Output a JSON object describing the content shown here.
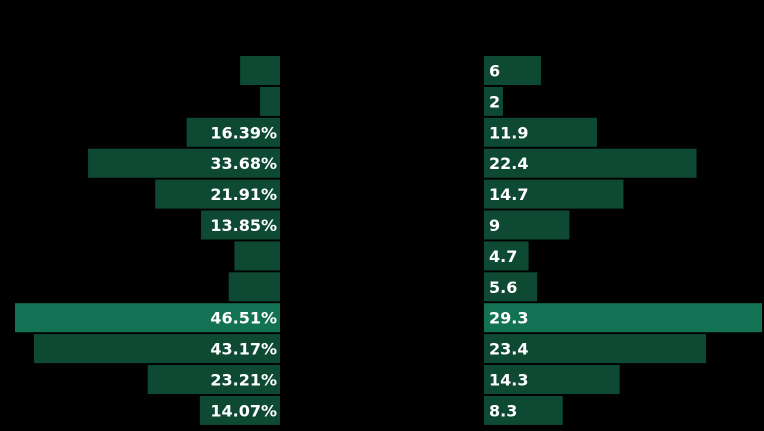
{
  "chart_data": {
    "type": "bar",
    "orientation": "horizontal",
    "layout": "diverging",
    "series": [
      {
        "values": [
          7,
          3.5,
          16.39,
          33.68,
          21.91,
          13.85,
          8,
          9,
          46.51,
          43.17,
          23.21,
          14.07
        ],
        "labels": [
          "",
          "",
          "16.39%",
          "33.68%",
          "21.91%",
          "13.85%",
          "",
          "",
          "46.51%",
          "43.17%",
          "23.21%",
          "14.07%"
        ],
        "xlim": [
          0,
          46.51
        ]
      },
      {
        "values": [
          6,
          2,
          11.9,
          22.4,
          14.7,
          9,
          4.7,
          5.6,
          29.3,
          23.4,
          14.3,
          8.3
        ],
        "labels": [
          "6",
          "2",
          "11.9",
          "22.4",
          "14.7",
          "9",
          "4.7",
          "5.6",
          "29.3",
          "23.4",
          "14.3",
          "8.3"
        ],
        "xlim": [
          0,
          29.3
        ]
      }
    ],
    "highlight_index": 8,
    "colors": {
      "bar": "#0e4a33",
      "highlight": "#137253",
      "background": "#000000",
      "label": "#ffffff"
    }
  }
}
